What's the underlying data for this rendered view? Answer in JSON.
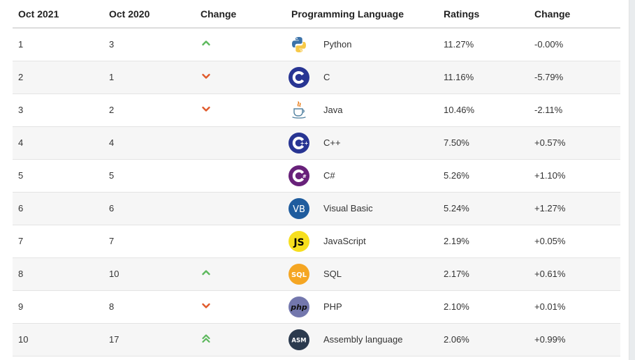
{
  "headers": [
    "Oct 2021",
    "Oct 2020",
    "Change",
    "Programming Language",
    "Ratings",
    "Change"
  ],
  "rows": [
    {
      "rank_2021": "1",
      "rank_2020": "3",
      "trend": "up",
      "icon": "python-logo-icon",
      "language": "Python",
      "rating": "11.27%",
      "change": "-0.00%"
    },
    {
      "rank_2021": "2",
      "rank_2020": "1",
      "trend": "down",
      "icon": "c-logo-icon",
      "language": "C",
      "rating": "11.16%",
      "change": "-5.79%"
    },
    {
      "rank_2021": "3",
      "rank_2020": "2",
      "trend": "down",
      "icon": "java-logo-icon",
      "language": "Java",
      "rating": "10.46%",
      "change": "-2.11%"
    },
    {
      "rank_2021": "4",
      "rank_2020": "4",
      "trend": "none",
      "icon": "cpp-logo-icon",
      "language": "C++",
      "rating": "7.50%",
      "change": "+0.57%"
    },
    {
      "rank_2021": "5",
      "rank_2020": "5",
      "trend": "none",
      "icon": "csharp-logo-icon",
      "language": "C#",
      "rating": "5.26%",
      "change": "+1.10%"
    },
    {
      "rank_2021": "6",
      "rank_2020": "6",
      "trend": "none",
      "icon": "visual-basic-logo-icon",
      "language": "Visual Basic",
      "rating": "5.24%",
      "change": "+1.27%"
    },
    {
      "rank_2021": "7",
      "rank_2020": "7",
      "trend": "none",
      "icon": "javascript-logo-icon",
      "language": "JavaScript",
      "rating": "2.19%",
      "change": "+0.05%"
    },
    {
      "rank_2021": "8",
      "rank_2020": "10",
      "trend": "up",
      "icon": "sql-logo-icon",
      "language": "SQL",
      "rating": "2.17%",
      "change": "+0.61%"
    },
    {
      "rank_2021": "9",
      "rank_2020": "8",
      "trend": "down",
      "icon": "php-logo-icon",
      "language": "PHP",
      "rating": "2.10%",
      "change": "+0.01%"
    },
    {
      "rank_2021": "10",
      "rank_2020": "17",
      "trend": "up-double",
      "icon": "assembly-logo-icon",
      "language": "Assembly language",
      "rating": "2.06%",
      "change": "+0.99%"
    }
  ],
  "logo_text": {
    "vb": "VB",
    "js": "JS",
    "sql": "SQL",
    "php": "php",
    "asm": "ASM"
  },
  "colors": {
    "up": "#5cb85c",
    "down": "#e05a2b",
    "header_rule": "#dcdcdc",
    "alt_row": "#f6f6f6",
    "c_blue": "#283593",
    "csharp_purple": "#68217a",
    "vb_blue": "#1f5c9e",
    "js_yellow": "#f7df1e",
    "sql_orange": "#f5a623",
    "php_purple": "#7377ad",
    "asm_navy": "#2b3a4e"
  }
}
